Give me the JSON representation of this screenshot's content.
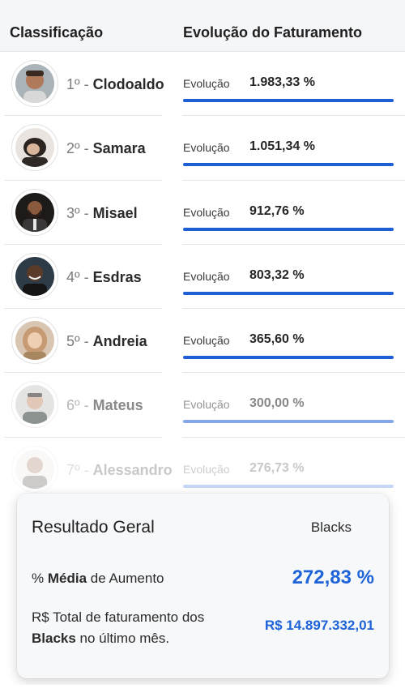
{
  "header": {
    "left_title": "Classificação",
    "right_title": "Evolução do Faturamento"
  },
  "colors": {
    "bar_blue": "#1f5fd6",
    "accent_blue": "#1f63d9"
  },
  "rows": [
    {
      "position": "1º - ",
      "name": "Clodoaldo",
      "evo_label": "Evolução",
      "evo_value": "1.983,33 %",
      "bar_fill": 1.0
    },
    {
      "position": "2º - ",
      "name": "Samara",
      "evo_label": "Evolução",
      "evo_value": "1.051,34 %",
      "bar_fill": 1.0
    },
    {
      "position": "3º - ",
      "name": "Misael",
      "evo_label": "Evolução",
      "evo_value": "912,76 %",
      "bar_fill": 1.0
    },
    {
      "position": "4º - ",
      "name": "Esdras",
      "evo_label": "Evolução",
      "evo_value": "803,32 %",
      "bar_fill": 1.0
    },
    {
      "position": "5º - ",
      "name": "Andreia",
      "evo_label": "Evolução",
      "evo_value": "365,60 %",
      "bar_fill": 1.0
    },
    {
      "position": "6º - ",
      "name": "Mateus",
      "evo_label": "Evolução",
      "evo_value": "300,00 %",
      "bar_fill": 1.0
    },
    {
      "position": "7º - ",
      "name": "Alessandro",
      "evo_label": "Evolução",
      "evo_value": "276,73 %",
      "bar_fill": 1.0
    }
  ],
  "summary": {
    "title": "Resultado Geral",
    "group": "Blacks",
    "avg_prefix": "% ",
    "avg_bold": "Média",
    "avg_suffix": " de Aumento",
    "avg_value": "272,83 %",
    "total_line1": "R$ Total de faturamento dos",
    "total_bold": "Blacks",
    "total_line2_suffix": " no último mês.",
    "total_value": "R$ 14.897.332,01"
  }
}
